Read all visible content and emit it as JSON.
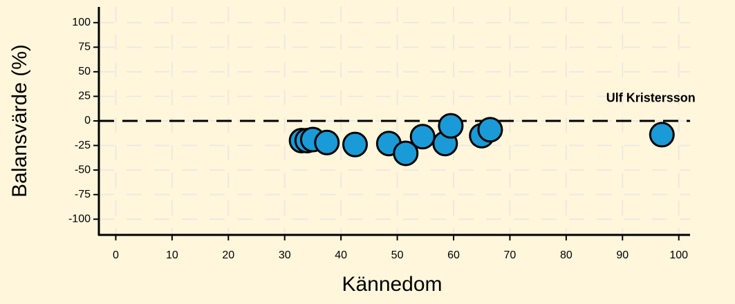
{
  "chart_data": {
    "type": "scatter",
    "xlabel": "Kännedom",
    "ylabel": "Balansvärde (%)",
    "x": [
      33,
      34,
      35,
      37.5,
      42.5,
      48.5,
      51.5,
      54.5,
      58.5,
      59.5,
      65,
      66.5,
      97
    ],
    "values": [
      -20,
      -20,
      -19,
      -22,
      -24,
      -23,
      -33,
      -16,
      -23,
      -5,
      -15,
      -9,
      -14
    ],
    "color": "#1a9ad6",
    "xlim": [
      -3,
      102
    ],
    "ylim": [
      -116,
      116
    ],
    "xticks": [
      0,
      10,
      20,
      30,
      40,
      50,
      60,
      70,
      80,
      90,
      100
    ],
    "yticks": [
      -100,
      -75,
      -50,
      -25,
      0,
      25,
      50,
      75,
      100
    ],
    "grid": true,
    "hline": 0,
    "annotation": "Ulf Kristersson"
  }
}
